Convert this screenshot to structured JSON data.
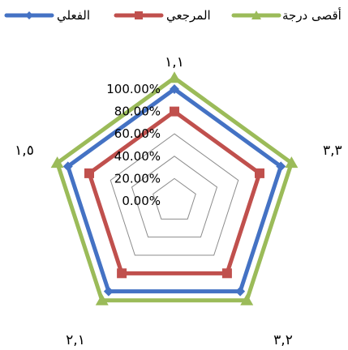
{
  "chart_data": {
    "type": "radar",
    "categories": [
      "١,١",
      "٣,٣",
      "٣,٢",
      "٢,١",
      "١,٥"
    ],
    "series": [
      {
        "name": "الفعلي",
        "values": [
          1.0,
          1.0,
          1.0,
          1.0,
          1.0
        ],
        "color": "#4472C4",
        "marker": "diamond"
      },
      {
        "name": "المرجعي",
        "values": [
          0.8,
          0.8,
          0.8,
          0.8,
          0.8
        ],
        "color": "#C0504D",
        "marker": "square"
      },
      {
        "name": "أقصى درجة",
        "values": [
          1.1,
          1.1,
          1.1,
          1.1,
          1.1
        ],
        "color": "#9BBB59",
        "marker": "triangle"
      }
    ],
    "axis": {
      "min": 0,
      "max": 1.0,
      "ticks": [
        0,
        0.2,
        0.4,
        0.6,
        0.8,
        1.0
      ],
      "tick_labels": [
        "0.00%",
        "20.00%",
        "40.00%",
        "60.00%",
        "80.00%",
        "100.00%"
      ]
    },
    "legend": {
      "position": "top",
      "items": [
        "الفعلي",
        "المرجعي",
        "أقصى درجة"
      ]
    },
    "grid": true
  }
}
